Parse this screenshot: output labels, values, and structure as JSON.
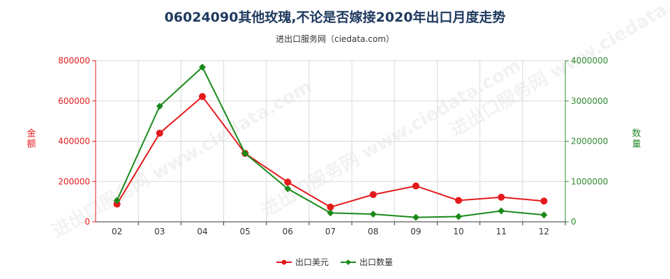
{
  "title": "06024090其他玫瑰,不论是否嫁接2020年出口月度走势",
  "subtitle": "进出口服务网（ciedata.com）",
  "watermark": "进出口服务网 www.ciedata.com",
  "colors": {
    "left_axis": "#e41a1c",
    "right_axis": "#2e8b2e",
    "series_usd": "#e41a1c",
    "series_qty": "#1a8a1a",
    "grid": "#d9d9d9"
  },
  "chart_data": {
    "type": "line",
    "x": [
      "02",
      "03",
      "04",
      "05",
      "06",
      "07",
      "08",
      "09",
      "10",
      "11",
      "12"
    ],
    "grid": true,
    "legend_position": "bottom-center",
    "y_left": {
      "label": "金额",
      "ylim": [
        0,
        800000
      ],
      "ticks": [
        "0",
        "200000",
        "400000",
        "600000",
        "800000"
      ]
    },
    "y_right": {
      "label": "数量",
      "ylim": [
        0,
        4000000
      ],
      "ticks": [
        "0",
        "1000000",
        "2000000",
        "3000000",
        "4000000"
      ]
    },
    "series": [
      {
        "name": "出口美元",
        "axis": "left",
        "marker": "circle",
        "values": [
          88000,
          440000,
          622000,
          340000,
          197000,
          73000,
          135000,
          178000,
          106000,
          122000,
          103000
        ]
      },
      {
        "name": "出口数量",
        "axis": "right",
        "marker": "diamond",
        "values": [
          530000,
          2870000,
          3840000,
          1700000,
          820000,
          220000,
          190000,
          110000,
          130000,
          270000,
          170000
        ]
      }
    ]
  }
}
